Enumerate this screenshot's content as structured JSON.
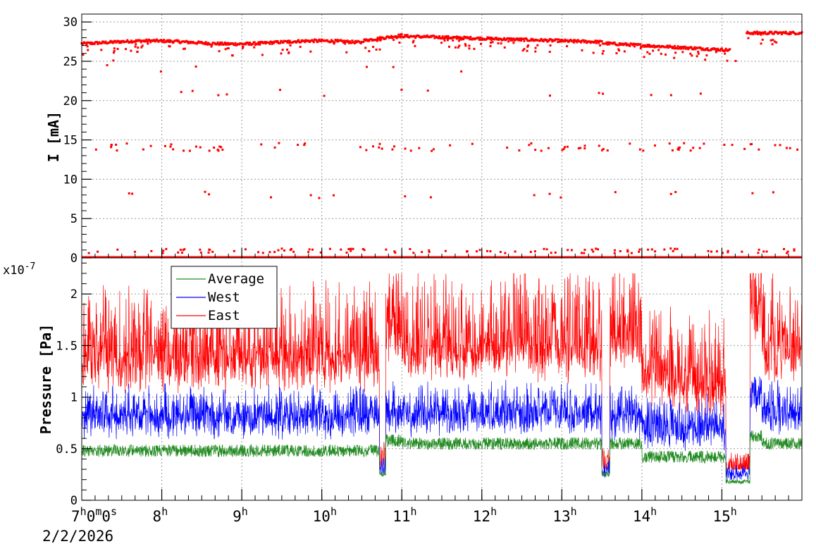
{
  "chart_data": [
    {
      "type": "scatter",
      "ylabel": "I [mA]",
      "ylim": [
        0,
        31
      ],
      "yticks": [
        "0",
        "5",
        "10",
        "15",
        "20",
        "25",
        "30"
      ],
      "xlim_hours": [
        7.0,
        16.0
      ],
      "grid": true,
      "series": [
        {
          "color": "#ff0000",
          "baseline_mA": 27.4
        }
      ]
    },
    {
      "type": "line",
      "ylabel": "Pressure [Pa]",
      "y_multiplier": "x10",
      "y_multiplier_exp": "-7",
      "ylim": [
        0,
        2.35
      ],
      "yticks": [
        "0",
        "0.5",
        "1",
        "1.5",
        "2"
      ],
      "xlim_hours": [
        7.0,
        16.0
      ],
      "grid": true,
      "legend_position": "top-left",
      "series": [
        {
          "name": "Average",
          "color": "#228b22"
        },
        {
          "name": "West",
          "color": "#0000ff"
        },
        {
          "name": "East",
          "color": "#ff0000"
        }
      ]
    }
  ],
  "x_axis": {
    "start_label": {
      "base": "7",
      "h": "h",
      "m": "0",
      "mu": "m",
      "s": "0",
      "su": "s"
    },
    "date": "2/2/2026",
    "hour_ticks": [
      {
        "hour": 8,
        "base": "8",
        "unit": "h"
      },
      {
        "hour": 9,
        "base": "9",
        "unit": "h"
      },
      {
        "hour": 10,
        "base": "10",
        "unit": "h"
      },
      {
        "hour": 11,
        "base": "11",
        "unit": "h"
      },
      {
        "hour": 12,
        "base": "12",
        "unit": "h"
      },
      {
        "hour": 13,
        "base": "13",
        "unit": "h"
      },
      {
        "hour": 14,
        "base": "14",
        "unit": "h"
      },
      {
        "hour": 15,
        "base": "15",
        "unit": "h"
      }
    ]
  }
}
